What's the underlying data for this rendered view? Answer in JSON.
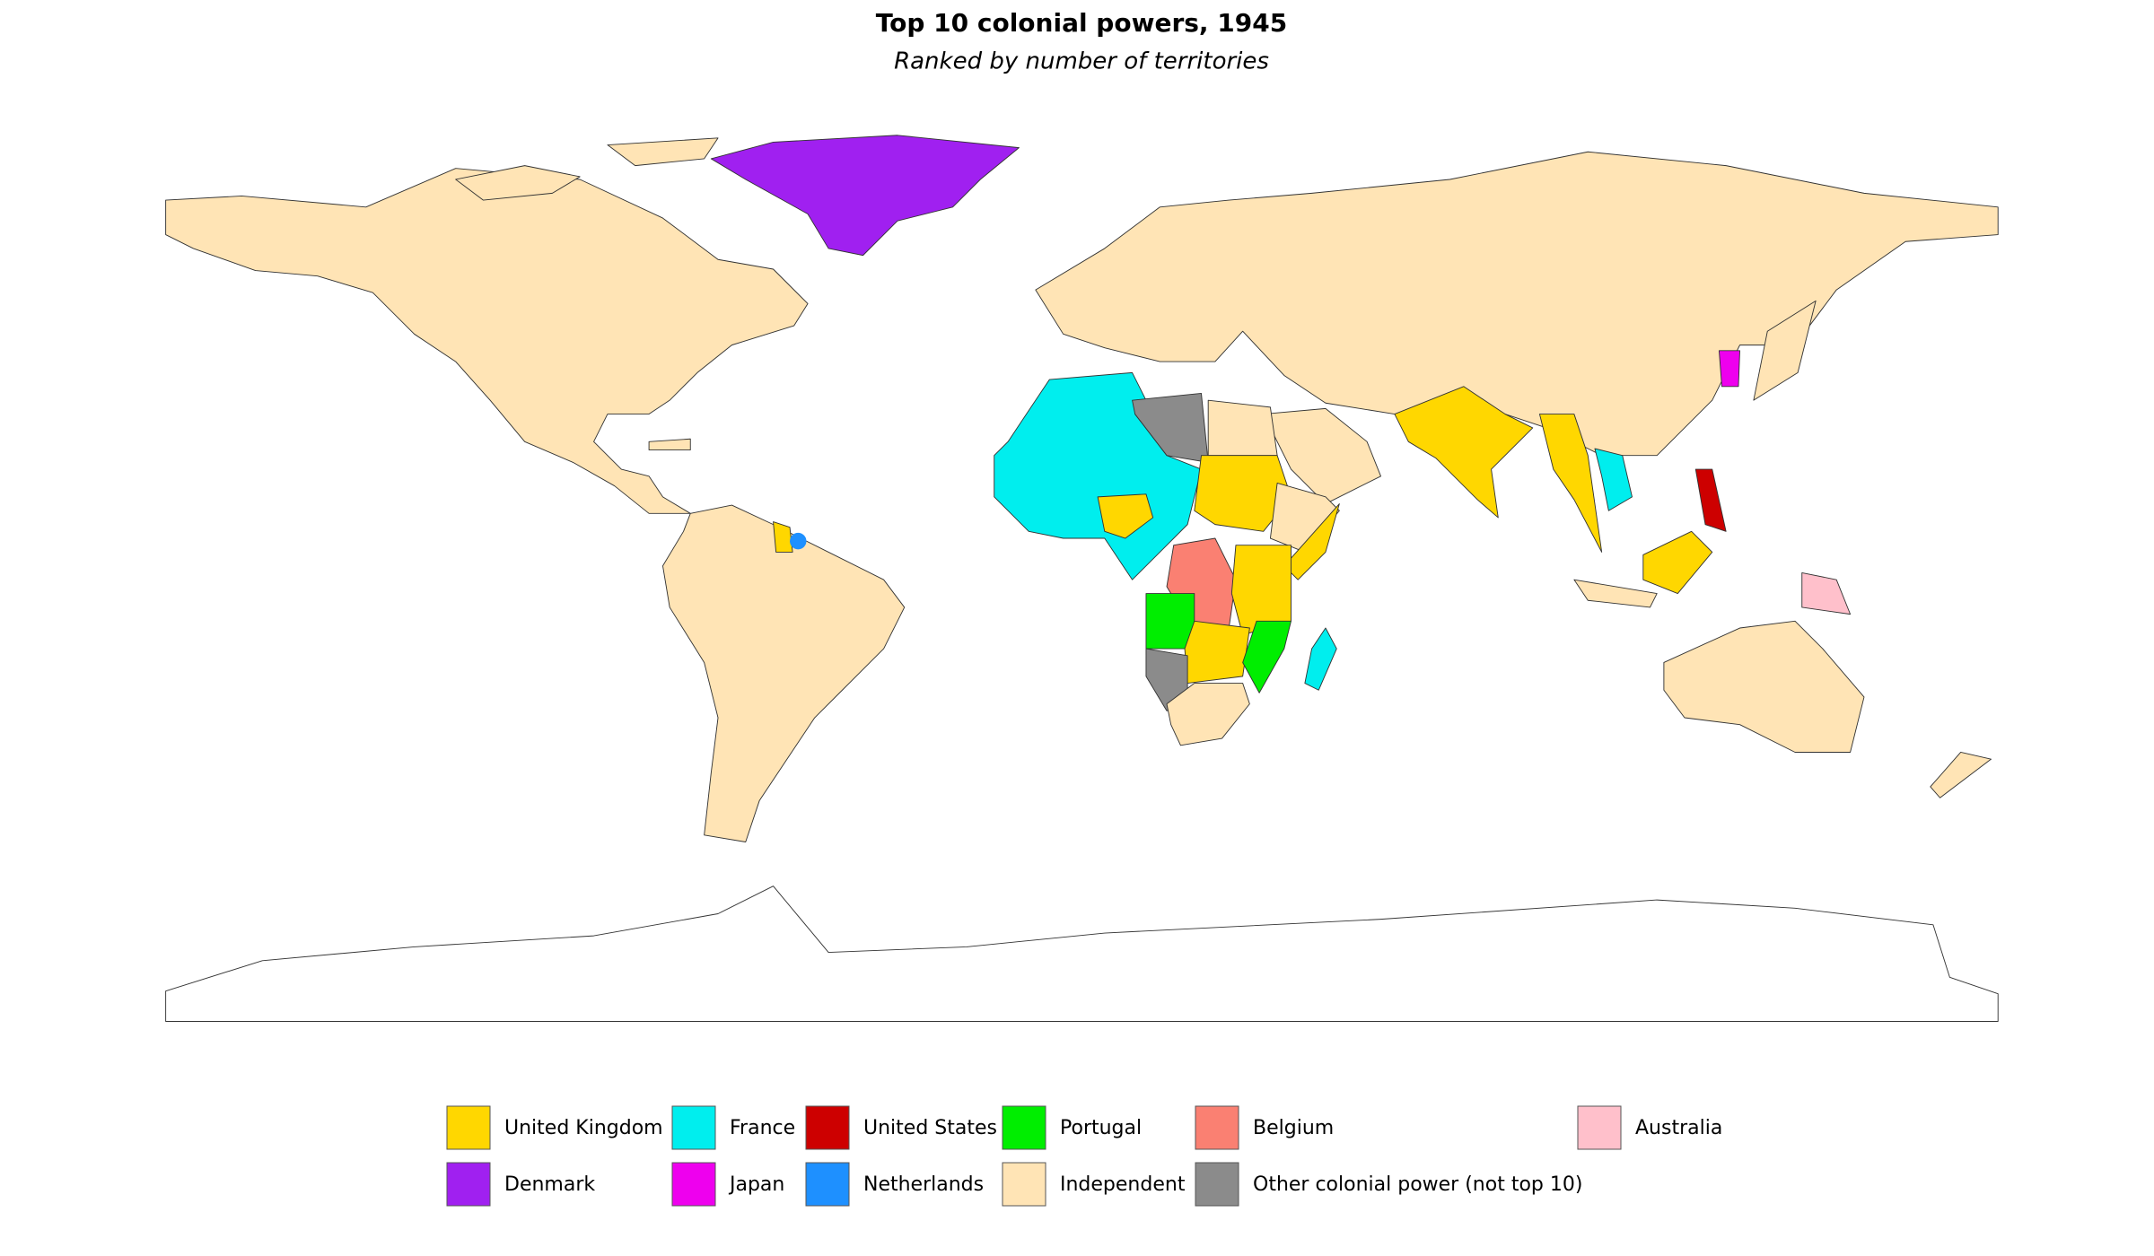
{
  "title": "Top 10 colonial powers, 1945",
  "subtitle": "Ranked by number of territories",
  "legend": [
    {
      "label": "United Kingdom",
      "color": "#ffd700"
    },
    {
      "label": "France",
      "color": "#00eeee"
    },
    {
      "label": "United States",
      "color": "#cd0000"
    },
    {
      "label": "Portugal",
      "color": "#00ee00"
    },
    {
      "label": "Belgium",
      "color": "#fa8072"
    },
    {
      "label": "Australia",
      "color": "#ffc0cb"
    },
    {
      "label": "Denmark",
      "color": "#a020f0"
    },
    {
      "label": "Japan",
      "color": "#ee00ee"
    },
    {
      "label": "Netherlands",
      "color": "#1e90ff"
    },
    {
      "label": "Independent",
      "color": "#ffe4b5"
    },
    {
      "label": "Other colonial power (not top 10)",
      "color": "#8b8b8b"
    }
  ]
}
